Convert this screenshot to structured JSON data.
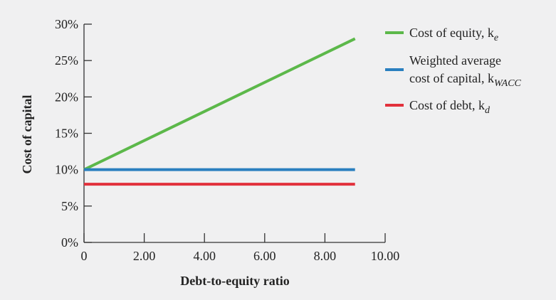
{
  "chart_data": {
    "type": "line",
    "xlabel": "Debt-to-equity ratio",
    "ylabel": "Cost of capital",
    "xlim": [
      0,
      10
    ],
    "ylim": [
      0,
      30
    ],
    "x_ticks": [
      0,
      2,
      4,
      6,
      8,
      10
    ],
    "x_tick_labels": [
      "0",
      "2.00",
      "4.00",
      "6.00",
      "8.00",
      "10.00"
    ],
    "y_ticks": [
      0,
      5,
      10,
      15,
      20,
      25,
      30
    ],
    "y_tick_labels": [
      "0%",
      "5%",
      "10%",
      "15%",
      "20%",
      "25%",
      "30%"
    ],
    "grid": false,
    "legend_position": "right",
    "series": [
      {
        "key": "equity",
        "name_lines": [
          "Cost of equity, k",
          "e"
        ],
        "color": "#5cb84a",
        "x": [
          0,
          9
        ],
        "y": [
          10,
          28
        ]
      },
      {
        "key": "wacc",
        "name_lines": [
          "Weighted average",
          "cost of capital, k",
          "WACC"
        ],
        "color": "#2a7fbf",
        "x": [
          0,
          9
        ],
        "y": [
          10,
          10
        ]
      },
      {
        "key": "debt",
        "name_lines": [
          "Cost of debt, k",
          "d"
        ],
        "color": "#e2313c",
        "x": [
          0,
          9
        ],
        "y": [
          8,
          8
        ]
      }
    ]
  }
}
